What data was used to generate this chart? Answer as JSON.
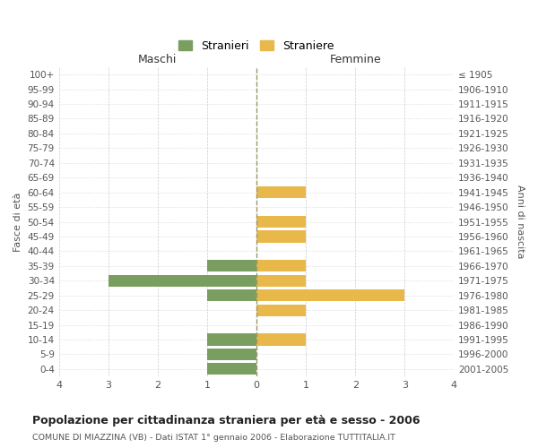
{
  "age_groups": [
    "100+",
    "95-99",
    "90-94",
    "85-89",
    "80-84",
    "75-79",
    "70-74",
    "65-69",
    "60-64",
    "55-59",
    "50-54",
    "45-49",
    "40-44",
    "35-39",
    "30-34",
    "25-29",
    "20-24",
    "15-19",
    "10-14",
    "5-9",
    "0-4"
  ],
  "birth_years": [
    "≤ 1905",
    "1906-1910",
    "1911-1915",
    "1916-1920",
    "1921-1925",
    "1926-1930",
    "1931-1935",
    "1936-1940",
    "1941-1945",
    "1946-1950",
    "1951-1955",
    "1956-1960",
    "1961-1965",
    "1966-1970",
    "1971-1975",
    "1976-1980",
    "1981-1985",
    "1986-1990",
    "1991-1995",
    "1996-2000",
    "2001-2005"
  ],
  "males": [
    0,
    0,
    0,
    0,
    0,
    0,
    0,
    0,
    0,
    0,
    0,
    0,
    0,
    -1,
    -3,
    -1,
    0,
    0,
    -1,
    -1,
    -1
  ],
  "females": [
    0,
    0,
    0,
    0,
    0,
    0,
    0,
    0,
    1,
    0,
    1,
    1,
    0,
    1,
    1,
    3,
    1,
    0,
    1,
    0,
    0
  ],
  "male_color": "#7a9e5f",
  "female_color": "#e8b84b",
  "title": "Popolazione per cittadinanza straniera per età e sesso - 2006",
  "subtitle": "COMUNE DI MIAZZINA (VB) - Dati ISTAT 1° gennaio 2006 - Elaborazione TUTTITALIA.IT",
  "ylabel_left": "Fasce di età",
  "ylabel_right": "Anni di nascita",
  "xlabel_left": "Maschi",
  "xlabel_right": "Femmine",
  "legend_male": "Stranieri",
  "legend_female": "Straniere",
  "xlim": [
    -4,
    4
  ],
  "xticks": [
    -4,
    -3,
    -2,
    -1,
    0,
    1,
    2,
    3,
    4
  ],
  "xticklabels": [
    "4",
    "3",
    "2",
    "1",
    "0",
    "1",
    "2",
    "3",
    "4"
  ],
  "background_color": "#ffffff",
  "grid_color": "#cccccc",
  "bar_height": 0.8
}
